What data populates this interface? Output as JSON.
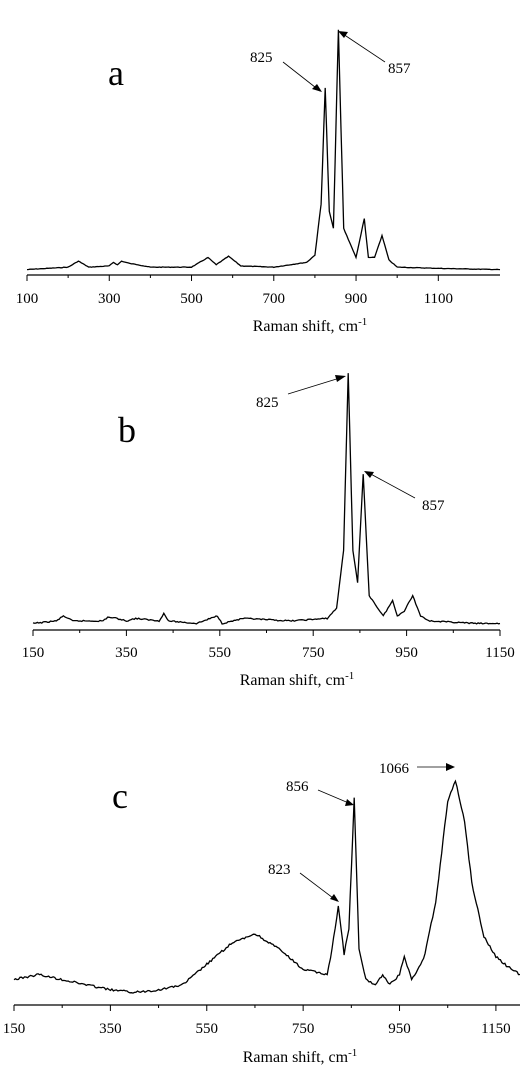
{
  "chart_data": [
    {
      "type": "line",
      "panel_label": "a",
      "xlabel": "Raman shift, cm",
      "xlabel_sup": "-1",
      "xlim": [
        100,
        1250
      ],
      "xticks": [
        "100",
        "300",
        "500",
        "700",
        "900",
        "1100"
      ],
      "y_axis_visible": false,
      "series": [
        {
          "x": [
            100,
            200,
            225,
            250,
            300,
            310,
            320,
            330,
            350,
            370,
            400,
            500,
            540,
            560,
            590,
            620,
            700,
            780,
            800,
            815,
            825,
            835,
            845,
            857,
            870,
            900,
            920,
            930,
            945,
            963,
            980,
            1000,
            1100,
            1250
          ],
          "y": [
            0.01,
            0.02,
            0.045,
            0.02,
            0.025,
            0.04,
            0.03,
            0.045,
            0.035,
            0.03,
            0.02,
            0.02,
            0.06,
            0.03,
            0.065,
            0.025,
            0.02,
            0.04,
            0.07,
            0.28,
            0.76,
            0.25,
            0.18,
            1.0,
            0.18,
            0.06,
            0.22,
            0.06,
            0.06,
            0.15,
            0.05,
            0.02,
            0.015,
            0.01
          ]
        }
      ],
      "annotations": [
        {
          "text": "825",
          "x": 825
        },
        {
          "text": "857",
          "x": 857
        }
      ]
    },
    {
      "type": "line",
      "panel_label": "b",
      "xlabel": "Raman shift, cm",
      "xlabel_sup": "-1",
      "xlim": [
        150,
        1150
      ],
      "xticks": [
        "150",
        "350",
        "550",
        "750",
        "950",
        "1150"
      ],
      "y_axis_visible": false,
      "series": [
        {
          "x": [
            150,
            200,
            215,
            235,
            300,
            310,
            330,
            350,
            370,
            420,
            430,
            440,
            500,
            545,
            555,
            600,
            700,
            780,
            800,
            815,
            825,
            835,
            845,
            857,
            870,
            900,
            920,
            930,
            945,
            963,
            980,
            1000,
            1100,
            1150
          ],
          "y": [
            0.01,
            0.02,
            0.04,
            0.02,
            0.02,
            0.035,
            0.03,
            0.02,
            0.03,
            0.02,
            0.05,
            0.02,
            0.01,
            0.04,
            0.01,
            0.03,
            0.02,
            0.03,
            0.07,
            0.3,
            1.0,
            0.3,
            0.17,
            0.6,
            0.12,
            0.04,
            0.1,
            0.04,
            0.06,
            0.12,
            0.04,
            0.02,
            0.01,
            0.01
          ]
        }
      ],
      "annotations": [
        {
          "text": "825",
          "x": 825
        },
        {
          "text": "857",
          "x": 857
        }
      ]
    },
    {
      "type": "line",
      "panel_label": "c",
      "xlabel": "Raman shift, cm",
      "xlabel_sup": "-1",
      "xlim": [
        150,
        1200
      ],
      "xticks": [
        "150",
        "350",
        "550",
        "750",
        "950",
        "1150"
      ],
      "y_axis_visible": false,
      "series": [
        {
          "x": [
            150,
            200,
            250,
            300,
            350,
            400,
            450,
            500,
            550,
            600,
            650,
            700,
            750,
            800,
            810,
            823,
            835,
            845,
            856,
            866,
            880,
            900,
            915,
            930,
            950,
            960,
            975,
            1000,
            1025,
            1050,
            1066,
            1085,
            1100,
            1125,
            1150,
            1175,
            1200
          ],
          "y": [
            0.08,
            0.1,
            0.08,
            0.06,
            0.04,
            0.03,
            0.04,
            0.06,
            0.14,
            0.22,
            0.26,
            0.2,
            0.12,
            0.1,
            0.2,
            0.37,
            0.18,
            0.28,
            0.79,
            0.2,
            0.08,
            0.06,
            0.1,
            0.06,
            0.1,
            0.17,
            0.08,
            0.16,
            0.38,
            0.78,
            0.86,
            0.7,
            0.46,
            0.25,
            0.17,
            0.13,
            0.1
          ]
        }
      ],
      "annotations": [
        {
          "text": "823",
          "x": 823
        },
        {
          "text": "856",
          "x": 856
        },
        {
          "text": "1066",
          "x": 1066
        }
      ]
    }
  ]
}
